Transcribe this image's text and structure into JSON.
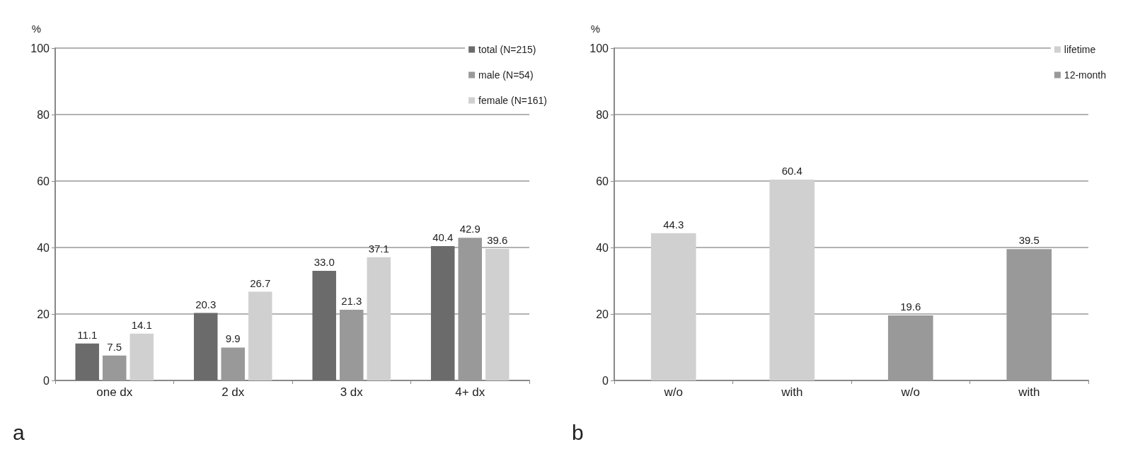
{
  "chart_data": [
    {
      "type": "bar",
      "ylabel": "%",
      "categories": [
        "one dx",
        "2 dx",
        "3 dx",
        "4+ dx"
      ],
      "series": [
        {
          "name": "total (N=215)",
          "color": "#6b6b6b",
          "values": [
            11.1,
            20.3,
            33.0,
            40.4
          ],
          "value_labels": [
            "11.1",
            "20.3",
            "33.0",
            "40.4"
          ]
        },
        {
          "name": "male (N=54)",
          "color": "#999999",
          "values": [
            7.5,
            9.9,
            21.3,
            42.9
          ]
        },
        {
          "name": "female (N=161)",
          "color": "#d0d0d0",
          "values": [
            14.1,
            26.7,
            37.1,
            39.6
          ]
        }
      ],
      "ylim": [
        0,
        100
      ],
      "yticks": [
        0,
        20,
        40,
        60,
        80,
        100
      ],
      "grid": "y",
      "legend": "top right",
      "data_labels": true,
      "annotations": [
        "a"
      ]
    },
    {
      "type": "bar",
      "ylabel": "%",
      "categories": [
        "w/o",
        "with",
        "w/o",
        "with"
      ],
      "series": [
        {
          "name": "lifetime",
          "color": "#d0d0d0",
          "values": [
            44.3,
            60.4,
            null,
            null
          ]
        },
        {
          "name": "12-month",
          "color": "#999999",
          "values": [
            null,
            null,
            19.6,
            39.5
          ]
        }
      ],
      "ylim": [
        0,
        100
      ],
      "yticks": [
        0,
        20,
        40,
        60,
        80,
        100
      ],
      "grid": "y",
      "legend": "top right",
      "data_labels": true,
      "annotations": [
        "b"
      ]
    }
  ]
}
